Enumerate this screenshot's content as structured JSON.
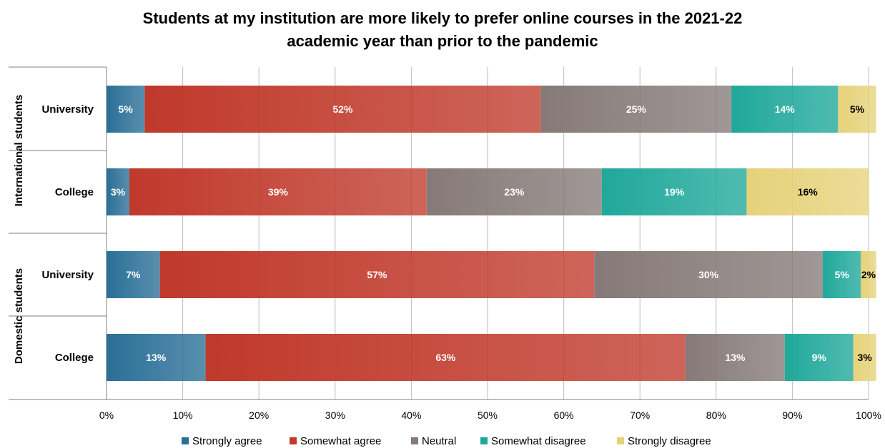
{
  "chart_data": {
    "type": "bar",
    "orientation": "horizontal",
    "stacked": true,
    "title_lines": [
      "Students at my institution are more likely to prefer online courses in the 2021-22",
      "academic year than prior to the pandemic"
    ],
    "groups": [
      {
        "label": "International students",
        "categories": [
          "University",
          "College"
        ]
      },
      {
        "label": "Domestic students",
        "categories": [
          "University",
          "College"
        ]
      }
    ],
    "series": [
      {
        "name": "Strongly agree",
        "color": "#2a6f97",
        "values": [
          5,
          3,
          7,
          13
        ],
        "labels": [
          "5%",
          "3%",
          "7%",
          "13%"
        ]
      },
      {
        "name": "Somewhat agree",
        "color": "#c0392b",
        "values": [
          52,
          39,
          57,
          63
        ],
        "labels": [
          "52%",
          "39%",
          "57%",
          "63%"
        ]
      },
      {
        "name": "Neutral",
        "color": "#857a78",
        "values": [
          25,
          23,
          30,
          13
        ],
        "labels": [
          "25%",
          "23%",
          "30%",
          "13%"
        ]
      },
      {
        "name": "Somewhat disagree",
        "color": "#1fa89a",
        "values": [
          14,
          19,
          5,
          9
        ],
        "labels": [
          "14%",
          "19%",
          "5%",
          "9%"
        ]
      },
      {
        "name": "Strongly disagree",
        "color": "#e6d27a",
        "values": [
          5,
          16,
          2,
          3
        ],
        "labels": [
          "5%",
          "16%",
          "2%",
          "3%"
        ]
      }
    ],
    "xlim": [
      0,
      100
    ],
    "xticks": [
      "0%",
      "10%",
      "20%",
      "30%",
      "40%",
      "50%",
      "60%",
      "70%",
      "80%",
      "90%",
      "100%"
    ],
    "grid": true,
    "legend_position": "bottom"
  }
}
